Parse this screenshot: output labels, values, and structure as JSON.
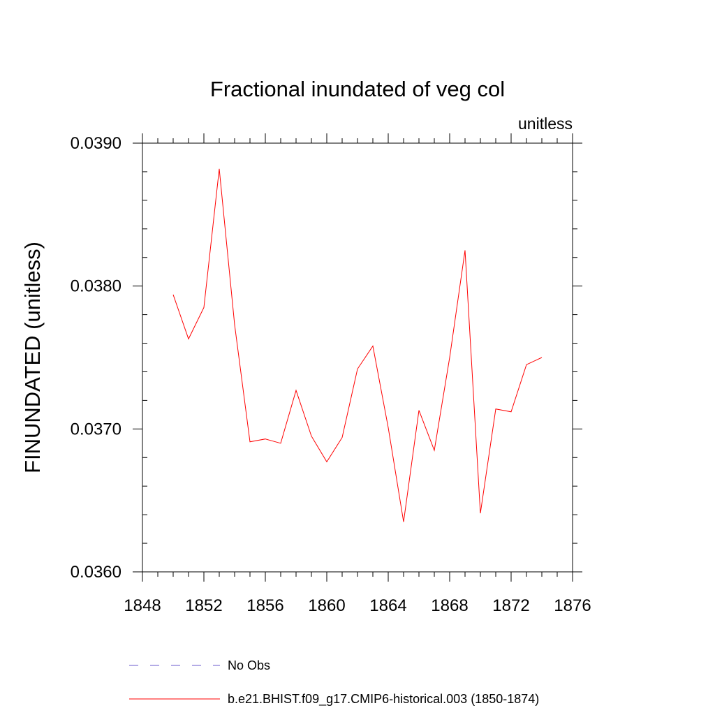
{
  "chart_data": {
    "type": "line",
    "title": "Fractional inundated of veg col",
    "units_label": "unitless",
    "ylabel": "FINUNDATED  (unitless)",
    "xlabel": "",
    "xlim": [
      1848,
      1876
    ],
    "ylim": [
      0.036,
      0.039
    ],
    "x_ticks": [
      1848,
      1852,
      1856,
      1860,
      1864,
      1868,
      1872,
      1876
    ],
    "x_tick_labels": [
      "1848",
      "1852",
      "1856",
      "1860",
      "1864",
      "1868",
      "1872",
      "1876"
    ],
    "x_minor_step": 1,
    "y_ticks": [
      0.036,
      0.037,
      0.038,
      0.039
    ],
    "y_tick_labels": [
      "0.0360",
      "0.0370",
      "0.0380",
      "0.0390"
    ],
    "y_minor_step": 0.0002,
    "grid": false,
    "legend_position": "bottom",
    "series": [
      {
        "name": "b.e21.BHIST.f09_g17.CMIP6-historical.003 (1850-1874)",
        "color": "#ff0000",
        "style": "solid",
        "x": [
          1850,
          1851,
          1852,
          1853,
          1854,
          1855,
          1856,
          1857,
          1858,
          1859,
          1860,
          1861,
          1862,
          1863,
          1864,
          1865,
          1866,
          1867,
          1868,
          1869,
          1870,
          1871,
          1872,
          1873,
          1874
        ],
        "values": [
          0.03794,
          0.03763,
          0.03785,
          0.03882,
          0.03773,
          0.03691,
          0.03693,
          0.0369,
          0.03727,
          0.03695,
          0.03677,
          0.03694,
          0.03742,
          0.03758,
          0.03701,
          0.03635,
          0.03713,
          0.03685,
          0.0375,
          0.03825,
          0.03641,
          0.03714,
          0.03712,
          0.03745,
          0.0375
        ]
      }
    ],
    "legend": [
      {
        "label": "No Obs",
        "color": "#6a5acd",
        "style": "dashed"
      },
      {
        "label": "b.e21.BHIST.f09_g17.CMIP6-historical.003 (1850-1874)",
        "color": "#ff0000",
        "style": "solid"
      }
    ]
  }
}
